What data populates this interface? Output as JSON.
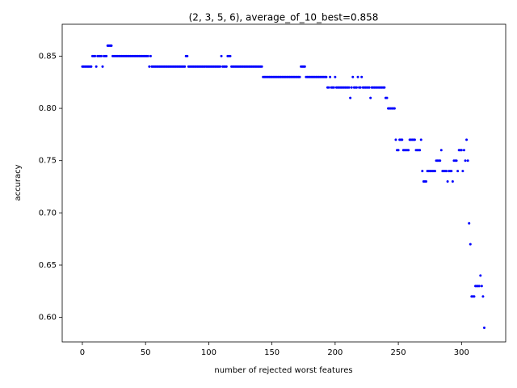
{
  "chart_data": {
    "type": "scatter",
    "title": "(2, 3, 5, 6), average_of_10_best=0.858",
    "xlabel": "number of rejected worst features",
    "ylabel": "accuracy",
    "color": "#0000ff",
    "xlim": [
      -15.95,
      334.95
    ],
    "ylim": [
      0.5765,
      0.8805
    ],
    "xticks": [
      0,
      50,
      100,
      150,
      200,
      250,
      300
    ],
    "yticks": [
      {
        "value": 0.6,
        "label": "0.60"
      },
      {
        "value": 0.65,
        "label": "0.65"
      },
      {
        "value": 0.7,
        "label": "0.70"
      },
      {
        "value": 0.75,
        "label": "0.75"
      },
      {
        "value": 0.8,
        "label": "0.80"
      },
      {
        "value": 0.85,
        "label": "0.85"
      }
    ],
    "x": [
      0,
      1,
      2,
      3,
      4,
      5,
      6,
      7,
      8,
      9,
      10,
      11,
      12,
      13,
      14,
      15,
      16,
      17,
      18,
      19,
      20,
      21,
      22,
      23,
      24,
      25,
      26,
      27,
      28,
      29,
      30,
      31,
      32,
      33,
      34,
      35,
      36,
      37,
      38,
      39,
      40,
      41,
      42,
      43,
      44,
      45,
      46,
      47,
      48,
      49,
      50,
      51,
      52,
      53,
      54,
      55,
      56,
      57,
      58,
      59,
      60,
      61,
      62,
      63,
      64,
      65,
      66,
      67,
      68,
      69,
      70,
      71,
      72,
      73,
      74,
      75,
      76,
      77,
      78,
      79,
      80,
      81,
      82,
      83,
      84,
      85,
      86,
      87,
      88,
      89,
      90,
      91,
      92,
      93,
      94,
      95,
      96,
      97,
      98,
      99,
      100,
      101,
      102,
      103,
      104,
      105,
      106,
      107,
      108,
      109,
      110,
      111,
      112,
      113,
      114,
      115,
      116,
      117,
      118,
      119,
      120,
      121,
      122,
      123,
      124,
      125,
      126,
      127,
      128,
      129,
      130,
      131,
      132,
      133,
      134,
      135,
      136,
      137,
      138,
      139,
      140,
      141,
      142,
      143,
      144,
      145,
      146,
      147,
      148,
      149,
      150,
      151,
      152,
      153,
      154,
      155,
      156,
      157,
      158,
      159,
      160,
      161,
      162,
      163,
      164,
      165,
      166,
      167,
      168,
      169,
      170,
      171,
      172,
      173,
      174,
      175,
      176,
      177,
      178,
      179,
      180,
      181,
      182,
      183,
      184,
      185,
      186,
      187,
      188,
      189,
      190,
      191,
      192,
      193,
      194,
      195,
      196,
      197,
      198,
      199,
      200,
      201,
      202,
      203,
      204,
      205,
      206,
      207,
      208,
      209,
      210,
      211,
      212,
      213,
      214,
      215,
      216,
      217,
      218,
      219,
      220,
      221,
      222,
      223,
      224,
      225,
      226,
      227,
      228,
      229,
      230,
      231,
      232,
      233,
      234,
      235,
      236,
      237,
      238,
      239,
      240,
      241,
      242,
      243,
      244,
      245,
      246,
      247,
      248,
      249,
      250,
      251,
      252,
      253,
      254,
      255,
      256,
      257,
      258,
      259,
      260,
      261,
      262,
      263,
      264,
      265,
      266,
      267,
      268,
      269,
      270,
      271,
      272,
      273,
      274,
      275,
      276,
      277,
      278,
      279,
      280,
      281,
      282,
      283,
      284,
      285,
      286,
      287,
      288,
      289,
      290,
      291,
      292,
      293,
      294,
      295,
      296,
      297,
      298,
      299,
      300,
      301,
      302,
      303,
      304,
      305,
      306,
      307,
      308,
      309,
      310,
      311,
      312,
      313,
      314,
      315,
      316,
      317,
      318
    ],
    "values": [
      0.84,
      0.84,
      0.84,
      0.84,
      0.84,
      0.84,
      0.84,
      0.84,
      0.85,
      0.85,
      0.85,
      0.84,
      0.85,
      0.85,
      0.85,
      0.85,
      0.84,
      0.85,
      0.85,
      0.85,
      0.86,
      0.86,
      0.86,
      0.86,
      0.85,
      0.85,
      0.85,
      0.85,
      0.85,
      0.85,
      0.85,
      0.85,
      0.85,
      0.85,
      0.85,
      0.85,
      0.85,
      0.85,
      0.85,
      0.85,
      0.85,
      0.85,
      0.85,
      0.85,
      0.85,
      0.85,
      0.85,
      0.85,
      0.85,
      0.85,
      0.85,
      0.85,
      0.85,
      0.84,
      0.85,
      0.84,
      0.84,
      0.84,
      0.84,
      0.84,
      0.84,
      0.84,
      0.84,
      0.84,
      0.84,
      0.84,
      0.84,
      0.84,
      0.84,
      0.84,
      0.84,
      0.84,
      0.84,
      0.84,
      0.84,
      0.84,
      0.84,
      0.84,
      0.84,
      0.84,
      0.84,
      0.84,
      0.85,
      0.85,
      0.84,
      0.84,
      0.84,
      0.84,
      0.84,
      0.84,
      0.84,
      0.84,
      0.84,
      0.84,
      0.84,
      0.84,
      0.84,
      0.84,
      0.84,
      0.84,
      0.84,
      0.84,
      0.84,
      0.84,
      0.84,
      0.84,
      0.84,
      0.84,
      0.84,
      0.84,
      0.85,
      0.84,
      0.84,
      0.84,
      0.84,
      0.85,
      0.85,
      0.85,
      0.84,
      0.84,
      0.84,
      0.84,
      0.84,
      0.84,
      0.84,
      0.84,
      0.84,
      0.84,
      0.84,
      0.84,
      0.84,
      0.84,
      0.84,
      0.84,
      0.84,
      0.84,
      0.84,
      0.84,
      0.84,
      0.84,
      0.84,
      0.84,
      0.84,
      0.83,
      0.83,
      0.83,
      0.83,
      0.83,
      0.83,
      0.83,
      0.83,
      0.83,
      0.83,
      0.83,
      0.83,
      0.83,
      0.83,
      0.83,
      0.83,
      0.83,
      0.83,
      0.83,
      0.83,
      0.83,
      0.83,
      0.83,
      0.83,
      0.83,
      0.83,
      0.83,
      0.83,
      0.83,
      0.83,
      0.84,
      0.84,
      0.84,
      0.84,
      0.83,
      0.83,
      0.83,
      0.83,
      0.83,
      0.83,
      0.83,
      0.83,
      0.83,
      0.83,
      0.83,
      0.83,
      0.83,
      0.83,
      0.83,
      0.83,
      0.83,
      0.82,
      0.82,
      0.83,
      0.82,
      0.82,
      0.82,
      0.83,
      0.82,
      0.82,
      0.82,
      0.82,
      0.82,
      0.82,
      0.82,
      0.82,
      0.82,
      0.82,
      0.82,
      0.81,
      0.82,
      0.83,
      0.82,
      0.82,
      0.82,
      0.83,
      0.82,
      0.82,
      0.83,
      0.82,
      0.82,
      0.82,
      0.82,
      0.82,
      0.82,
      0.81,
      0.82,
      0.82,
      0.82,
      0.82,
      0.82,
      0.82,
      0.82,
      0.82,
      0.82,
      0.82,
      0.82,
      0.81,
      0.81,
      0.8,
      0.8,
      0.8,
      0.8,
      0.8,
      0.8,
      0.77,
      0.76,
      0.76,
      0.77,
      0.77,
      0.77,
      0.76,
      0.76,
      0.76,
      0.76,
      0.76,
      0.77,
      0.77,
      0.77,
      0.77,
      0.77,
      0.76,
      0.76,
      0.76,
      0.76,
      0.77,
      0.74,
      0.73,
      0.73,
      0.73,
      0.74,
      0.74,
      0.74,
      0.74,
      0.74,
      0.74,
      0.74,
      0.75,
      0.75,
      0.75,
      0.75,
      0.76,
      0.74,
      0.74,
      0.74,
      0.74,
      0.73,
      0.74,
      0.74,
      0.74,
      0.73,
      0.75,
      0.75,
      0.75,
      0.74,
      0.76,
      0.76,
      0.76,
      0.74,
      0.76,
      0.75,
      0.77,
      0.75,
      0.69,
      0.67,
      0.62,
      0.62,
      0.62,
      0.63,
      0.63,
      0.63,
      0.63,
      0.64,
      0.63,
      0.62,
      0.59
    ]
  }
}
